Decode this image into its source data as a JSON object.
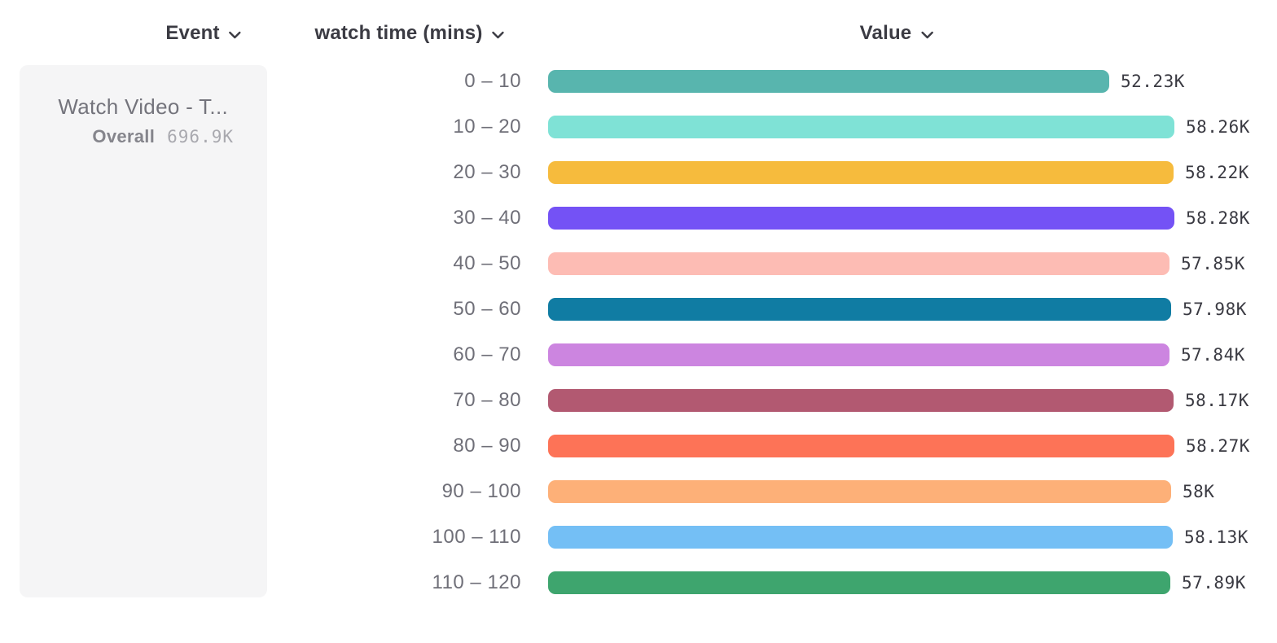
{
  "header": {
    "columns": [
      {
        "label": "Event"
      },
      {
        "label": "watch time (mins)"
      },
      {
        "label": "Value"
      }
    ]
  },
  "legend_card": {
    "event_name": "Watch Video - T...",
    "overall_label": "Overall",
    "overall_value": "696.9K"
  },
  "chart_data": {
    "type": "bar",
    "orientation": "horizontal",
    "title": "",
    "xlabel": "Value",
    "ylabel": "watch time (mins)",
    "xlim": [
      0,
      58280
    ],
    "grid": false,
    "categories": [
      "0 – 10",
      "10 – 20",
      "20 – 30",
      "30 – 40",
      "40 – 50",
      "50 – 60",
      "60 – 70",
      "70 – 80",
      "80 – 90",
      "90 – 100",
      "100 – 110",
      "110 – 120"
    ],
    "values": [
      52230,
      58260,
      58220,
      58280,
      57850,
      57980,
      57840,
      58170,
      58270,
      58000,
      58130,
      57890
    ],
    "value_labels": [
      "52.23K",
      "58.26K",
      "58.22K",
      "58.28K",
      "57.85K",
      "57.98K",
      "57.84K",
      "58.17K",
      "58.27K",
      "58K",
      "58.13K",
      "57.89K"
    ],
    "colors": [
      "#58B5AE",
      "#7FE2D6",
      "#F6BB3D",
      "#7452F5",
      "#FDBCB4",
      "#107CA3",
      "#CC85E0",
      "#B25971",
      "#FD7357",
      "#FDB078",
      "#74BFF5",
      "#3EA56E"
    ]
  }
}
